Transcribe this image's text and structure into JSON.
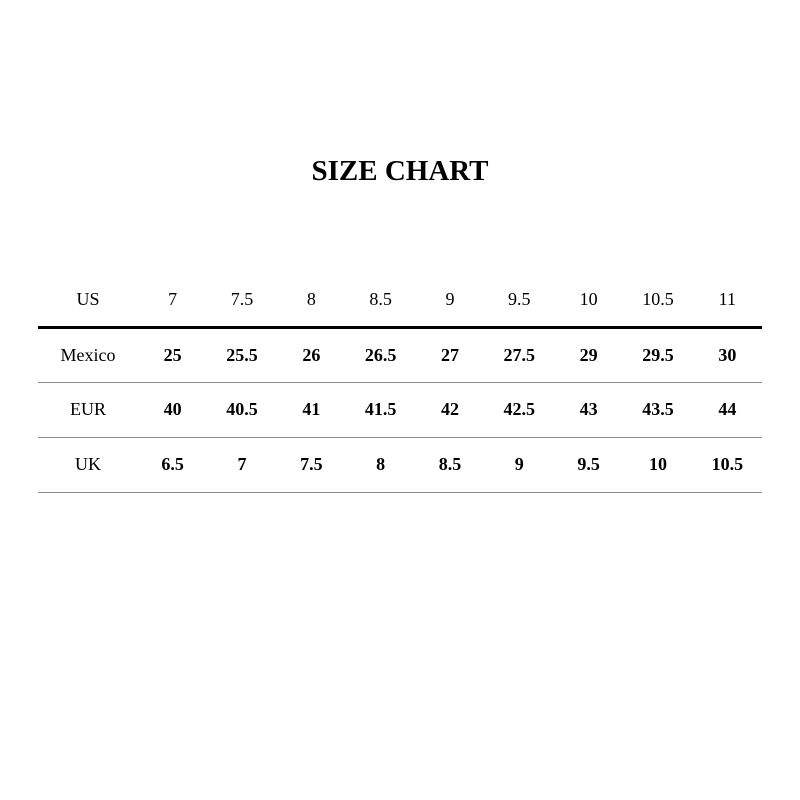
{
  "title": "SIZE CHART",
  "header": {
    "label": "US",
    "values": [
      "7",
      "7.5",
      "8",
      "8.5",
      "9",
      "9.5",
      "10",
      "10.5",
      "11"
    ]
  },
  "rows": [
    {
      "label": "Mexico",
      "values": [
        "25",
        "25.5",
        "26",
        "26.5",
        "27",
        "27.5",
        "29",
        "29.5",
        "30"
      ]
    },
    {
      "label": "EUR",
      "values": [
        "40",
        "40.5",
        "41",
        "41.5",
        "42",
        "42.5",
        "43",
        "43.5",
        "44"
      ]
    },
    {
      "label": "UK",
      "values": [
        "6.5",
        "7",
        "7.5",
        "8",
        "8.5",
        "9",
        "9.5",
        "10",
        "10.5"
      ]
    }
  ]
}
